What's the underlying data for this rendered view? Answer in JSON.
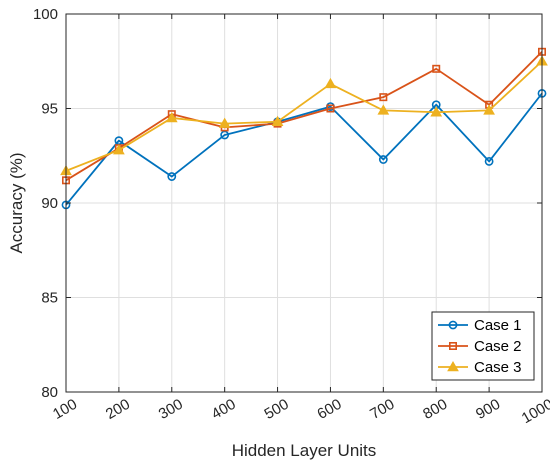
{
  "chart_data": {
    "type": "line",
    "xlabel": "Hidden Layer Units",
    "ylabel": "Accuracy (%)",
    "x": [
      100,
      200,
      300,
      400,
      500,
      600,
      700,
      800,
      900,
      1000
    ],
    "xlim": [
      100,
      1000
    ],
    "ylim": [
      80,
      100
    ],
    "yticks": [
      80,
      85,
      90,
      95,
      100
    ],
    "grid": true,
    "legend_position": "bottom-right",
    "series": [
      {
        "name": "Case 1",
        "color": "#0072BD",
        "marker": "circle",
        "values": [
          89.9,
          93.3,
          91.4,
          93.6,
          94.3,
          95.1,
          92.3,
          95.2,
          92.2,
          95.8
        ]
      },
      {
        "name": "Case 2",
        "color": "#D95319",
        "marker": "square",
        "values": [
          91.2,
          92.9,
          94.7,
          94.0,
          94.2,
          95.0,
          95.6,
          97.1,
          95.2,
          98.0
        ]
      },
      {
        "name": "Case 3",
        "color": "#EDB120",
        "marker": "triangle",
        "values": [
          91.7,
          92.8,
          94.5,
          94.2,
          94.3,
          96.3,
          94.9,
          94.8,
          94.9,
          97.5
        ]
      }
    ]
  }
}
